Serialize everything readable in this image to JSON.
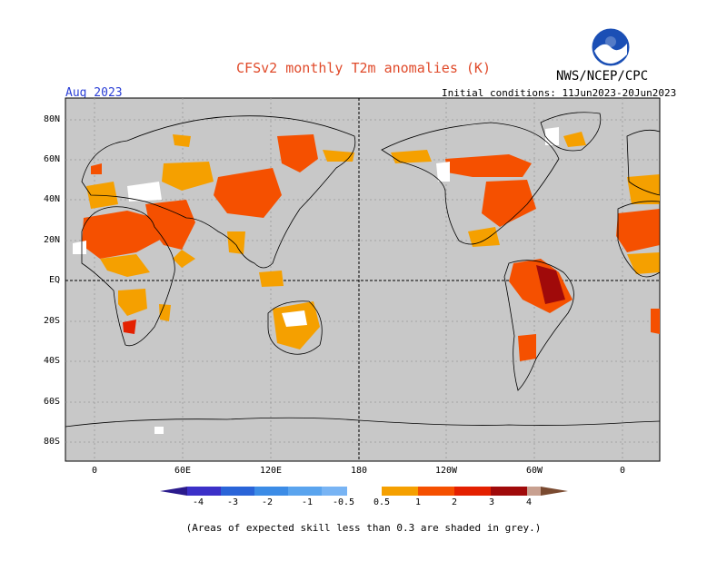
{
  "header": {
    "title": "CFSv2 monthly T2m anomalies (K)",
    "agency": "NWS/NCEP/CPC",
    "valid_month": "Aug 2023",
    "initial_conditions": "Initial conditions: 11Jun2023-20Jun2023"
  },
  "map": {
    "lat_labels": [
      "80N",
      "60N",
      "40N",
      "20N",
      "EQ",
      "20S",
      "40S",
      "60S",
      "80S"
    ],
    "lon_labels": [
      "0",
      "60E",
      "120E",
      "180",
      "120W",
      "60W",
      "0"
    ],
    "colors": {
      "background_land": "#c8c8c8",
      "ocean_skill_low": "#c8c8c8"
    }
  },
  "colorbar": {
    "labels": [
      "-4",
      "-3",
      "-2",
      "-1",
      "-0.5",
      "0.5",
      "1",
      "2",
      "3",
      "4"
    ],
    "colors": [
      "#2a1a8c",
      "#3c30c8",
      "#2a64d8",
      "#3c8ce6",
      "#78b4f4",
      "#ffffff",
      "#f5a000",
      "#f55000",
      "#e42000",
      "#a00a0a",
      "#c8a090",
      "#7a4a30"
    ]
  },
  "footnote": "(Areas of expected skill less than 0.3 are shaded in grey.)"
}
